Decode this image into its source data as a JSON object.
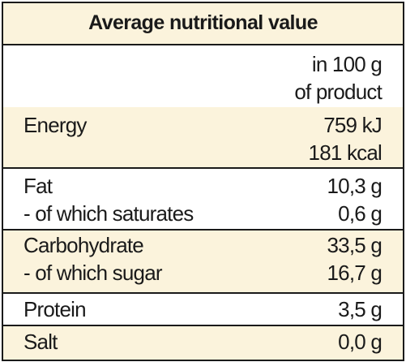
{
  "title": "Average nutritional value",
  "header": {
    "line1": "in 100 g",
    "line2": "of product"
  },
  "rows": [
    {
      "left": [
        "Energy"
      ],
      "right": [
        "759 kJ",
        "181 kcal"
      ],
      "shade": "#fbf3dc"
    },
    {
      "left": [
        "Fat",
        "- of which saturates"
      ],
      "right": [
        "10,3 g",
        "0,6 g"
      ],
      "shade": "#ffffff"
    },
    {
      "left": [
        "Carbohydrate",
        "- of which sugar"
      ],
      "right": [
        "33,5 g",
        "16,7 g"
      ],
      "shade": "#fbf3dc"
    },
    {
      "left": [
        "Protein"
      ],
      "right": [
        "3,5 g"
      ],
      "shade": "#ffffff"
    },
    {
      "left": [
        "Salt"
      ],
      "right": [
        "0,0 g"
      ],
      "shade": "#fbf3dc"
    }
  ]
}
